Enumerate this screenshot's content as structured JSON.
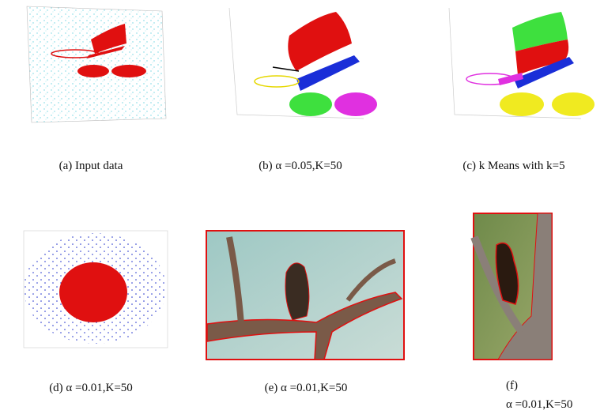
{
  "figure": {
    "panels": [
      {
        "caption": "(a) Input data"
      },
      {
        "caption": "(b) α =0.05,K=50"
      },
      {
        "caption": "(c) k Means with k=5"
      },
      {
        "caption": "(d) α =0.01,K=50"
      },
      {
        "caption": "(e) α =0.01,K=50"
      },
      {
        "caption": "(f)",
        "caption_line2": "α =0.01,K=50"
      }
    ]
  }
}
